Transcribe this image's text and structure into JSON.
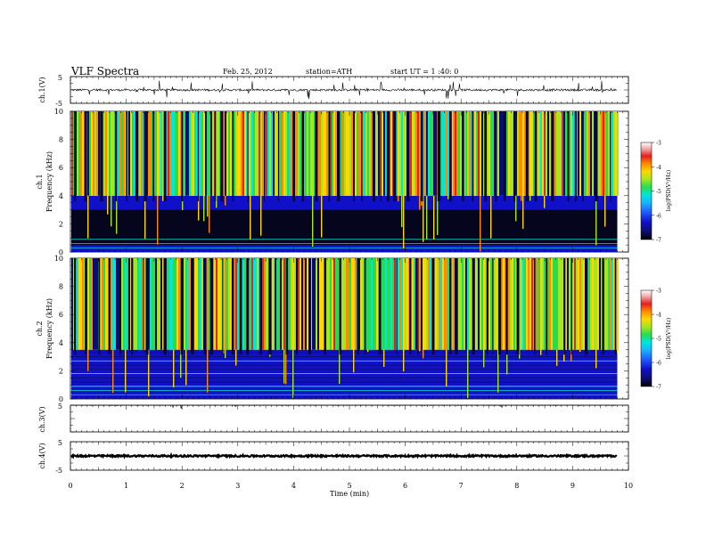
{
  "header": {
    "title": "VLF  Spectra",
    "date": "Feb. 25, 2012",
    "station": "station=ATH",
    "start": "start  UT  =   1  :40: 0"
  },
  "chart_data": [
    {
      "type": "line",
      "panel": "ch1-waveform",
      "ylabel": "ch.1(V)",
      "ylim": [
        -5,
        5
      ],
      "y_ticks": [
        "5",
        "-5"
      ],
      "baseline": 0.0,
      "color": "#000000"
    },
    {
      "type": "heatmap",
      "panel": "ch1-spectrogram",
      "ylabel": "ch.1\nFrequency  (kHz)",
      "ylabel_lines": [
        "ch.1",
        "Frequency  (kHz)"
      ],
      "ylim": [
        0,
        10
      ],
      "y_ticks": [
        "0",
        "2",
        "4",
        "6",
        "8",
        "10"
      ],
      "xlim": [
        0,
        10
      ],
      "data_extent_min": 9.8,
      "background_top_khz": 4.0,
      "quiet_band_khz": [
        0.5,
        3.0
      ],
      "colorbar": {
        "label": "log(PSD(V²/Hz)",
        "range": [
          -7,
          -3
        ],
        "ticks": [
          "-3",
          "-4",
          "-5",
          "-6",
          "-7"
        ]
      }
    },
    {
      "type": "heatmap",
      "panel": "ch2-spectrogram",
      "ylabel": "ch.2\nFrequency  (kHz)",
      "ylabel_lines": [
        "ch.2",
        "Frequency  (kHz)"
      ],
      "ylim": [
        0,
        10
      ],
      "y_ticks": [
        "0",
        "2",
        "4",
        "6",
        "8",
        "10"
      ],
      "xlim": [
        0,
        10
      ],
      "data_extent_min": 9.8,
      "background_top_khz": 3.5,
      "colorbar": {
        "label": "log(PSD(V²/Hz)",
        "range": [
          -7,
          -3
        ],
        "ticks": [
          "-3",
          "-4",
          "-5",
          "-6",
          "-7"
        ]
      }
    },
    {
      "type": "line",
      "panel": "ch3-waveform",
      "ylabel": "ch.3(V)",
      "ylim": [
        -5,
        5
      ],
      "y_ticks": [
        "5"
      ],
      "baseline": 5.0,
      "color": "#000000"
    },
    {
      "type": "line",
      "panel": "ch4-waveform",
      "ylabel": "ch.4(V)",
      "ylim": [
        -5,
        5
      ],
      "y_ticks": [
        "5",
        "-5"
      ],
      "baseline": 0.0,
      "color": "#000000",
      "xlabel": "Time  (min)",
      "x_ticks": [
        "0",
        "1",
        "2",
        "3",
        "4",
        "5",
        "6",
        "7",
        "8",
        "9",
        "10"
      ],
      "xlim": [
        0,
        10
      ]
    }
  ],
  "colormap": [
    "#000000",
    "#0d0d6e",
    "#1010c8",
    "#1e5aff",
    "#18b4ff",
    "#00e6dc",
    "#28dc50",
    "#a5e61e",
    "#ffd700",
    "#ff8c00",
    "#e61e1e",
    "#c8323c",
    "#f0a0a0",
    "#ffffff"
  ]
}
